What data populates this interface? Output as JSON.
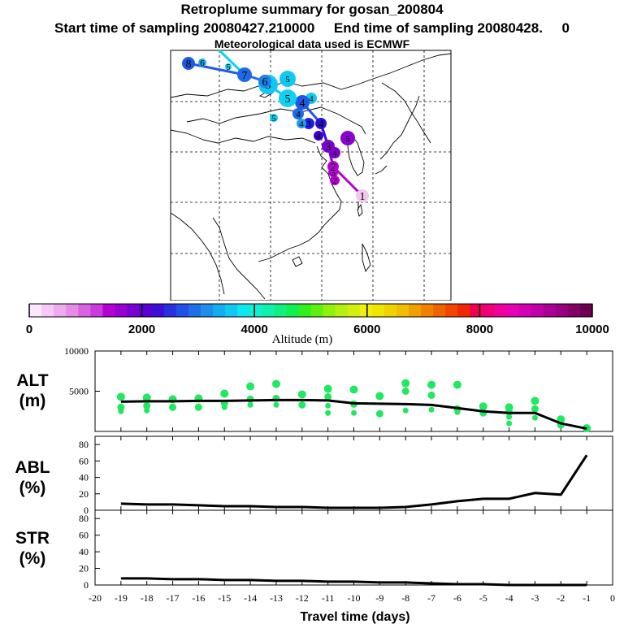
{
  "header": {
    "title": "Retroplume summary for gosan_200804",
    "sampling": "Start time of sampling 20080427.210000     End time of sampling 20080428.     0",
    "met": "Meteorological data used is ECMWF"
  },
  "map": {
    "trajectory": [
      {
        "label": "1",
        "color": "#f0c8f0"
      },
      {
        "label": "2",
        "color": "#b400d2"
      },
      {
        "label": "3",
        "color": "#8000d0"
      },
      {
        "label": "4",
        "color": "#2a10d8"
      },
      {
        "label": "4",
        "color": "#1e5ae6"
      },
      {
        "label": "5",
        "color": "#10d2f0"
      },
      {
        "label": "5",
        "color": "#10c8f0"
      },
      {
        "label": "6",
        "color": "#1e82ea"
      },
      {
        "label": "7",
        "color": "#1e6ae6"
      },
      {
        "label": "8",
        "color": "#1e5ae6"
      }
    ],
    "markers": [
      {
        "label": "2",
        "color": "#b400d2"
      },
      {
        "label": "3",
        "color": "#b400d2"
      },
      {
        "label": "4",
        "color": "#8000d0"
      },
      {
        "label": "5",
        "color": "#8a00d0"
      },
      {
        "label": "4",
        "color": "#3a00d4"
      },
      {
        "label": "3",
        "color": "#2020e0"
      },
      {
        "label": "4",
        "color": "#1e9aee"
      },
      {
        "label": "4",
        "color": "#1e6ae6"
      },
      {
        "label": "5",
        "color": "#10c8f0"
      },
      {
        "label": "4",
        "color": "#10c8f0"
      },
      {
        "label": "3",
        "color": "#1e6ae6"
      },
      {
        "label": "5",
        "color": "#10c8f0"
      },
      {
        "label": "6",
        "color": "#1eaaf0"
      },
      {
        "label": "5",
        "color": "#10c8f0"
      }
    ]
  },
  "colorbar": {
    "label": "Altitude (m)",
    "ticks": [
      "0",
      "2000",
      "4000",
      "6000",
      "8000",
      "10000"
    ],
    "colors": [
      "#fbe6fb",
      "#f5c8f5",
      "#eeaaee",
      "#e68ce6",
      "#d864e0",
      "#c83cdc",
      "#b400d2",
      "#9600d2",
      "#7800d2",
      "#5a00d2",
      "#3c10d8",
      "#2830e0",
      "#2050e6",
      "#1e6ee8",
      "#1e8eea",
      "#14aef0",
      "#10c8f0",
      "#10e6f0",
      "#10f0d2",
      "#10f0aa",
      "#10f080",
      "#10f050",
      "#30f020",
      "#60f010",
      "#90f010",
      "#b4f010",
      "#d2f010",
      "#f0f010",
      "#f0e600",
      "#f0d200",
      "#f0be00",
      "#f0a000",
      "#f08200",
      "#f06400",
      "#f04600",
      "#f02800",
      "#f00050",
      "#f00078",
      "#f0009a",
      "#e600b4",
      "#d200b4",
      "#be00aa",
      "#aa0096",
      "#960080",
      "#820064",
      "#6e0050"
    ]
  },
  "labels": {
    "alt": "ALT\n(m)",
    "abl": "ABL\n(%)",
    "str": "STR\n(%)"
  },
  "chart_data": [
    {
      "type": "scatter",
      "panel": "ALT",
      "ylabel": "ALT (m)",
      "xlabel": "Travel time (days)",
      "xlim": [
        -20,
        0
      ],
      "ylim": [
        0,
        10000
      ],
      "yticks": [
        5000,
        10000
      ],
      "line": {
        "x": [
          -19,
          -18,
          -17,
          -16,
          -15,
          -14,
          -13,
          -12,
          -11,
          -10,
          -9,
          -8,
          -7,
          -6,
          -5,
          -4,
          -3,
          -2,
          -1
        ],
        "y": [
          3700,
          3750,
          3750,
          3800,
          3800,
          3850,
          3900,
          3900,
          3850,
          3500,
          3450,
          3400,
          3300,
          2900,
          2500,
          2300,
          2300,
          1000,
          350
        ]
      },
      "points": [
        {
          "x": -19,
          "y": [
            4300,
            3000,
            2500
          ]
        },
        {
          "x": -18,
          "y": [
            4200,
            3200,
            2600
          ]
        },
        {
          "x": -17,
          "y": [
            4000,
            3000
          ]
        },
        {
          "x": -16,
          "y": [
            4100,
            3000
          ]
        },
        {
          "x": -15,
          "y": [
            4700,
            3500,
            3000
          ]
        },
        {
          "x": -14,
          "y": [
            5600,
            4000,
            3300
          ]
        },
        {
          "x": -13,
          "y": [
            5900,
            4100,
            3300
          ]
        },
        {
          "x": -12,
          "y": [
            4600,
            3300
          ]
        },
        {
          "x": -11,
          "y": [
            5300,
            4300,
            3200,
            2300
          ]
        },
        {
          "x": -10,
          "y": [
            5200,
            3400,
            2300
          ]
        },
        {
          "x": -9,
          "y": [
            4400,
            2200
          ]
        },
        {
          "x": -8,
          "y": [
            6000,
            5000,
            2600
          ]
        },
        {
          "x": -7,
          "y": [
            5800,
            4500,
            2700
          ]
        },
        {
          "x": -6,
          "y": [
            5800,
            2800,
            2400
          ]
        },
        {
          "x": -5,
          "y": [
            3100,
            2300
          ]
        },
        {
          "x": -4,
          "y": [
            3000,
            2400,
            1800,
            1000
          ]
        },
        {
          "x": -3,
          "y": [
            3800,
            2800,
            1700
          ]
        },
        {
          "x": -2,
          "y": [
            1500,
            800
          ]
        },
        {
          "x": -1,
          "y": [
            400
          ]
        }
      ]
    },
    {
      "type": "line",
      "panel": "ABL",
      "ylabel": "ABL (%)",
      "xlim": [
        -20,
        0
      ],
      "ylim": [
        0,
        90
      ],
      "yticks": [
        0,
        20,
        40,
        60,
        80
      ],
      "x": [
        -19,
        -18,
        -17,
        -16,
        -15,
        -14,
        -13,
        -12,
        -11,
        -10,
        -9,
        -8,
        -7,
        -6,
        -5,
        -4,
        -3,
        -2,
        -1
      ],
      "y": [
        8,
        7,
        7,
        6,
        5,
        5,
        4,
        4,
        3,
        3,
        3,
        4,
        7,
        11,
        14,
        14,
        21,
        19,
        67
      ]
    },
    {
      "type": "line",
      "panel": "STR",
      "ylabel": "STR (%)",
      "xlabel": "Travel time (days)",
      "xlim": [
        -20,
        0
      ],
      "ylim": [
        0,
        90
      ],
      "yticks": [
        0,
        20,
        40,
        60,
        80
      ],
      "xticks": [
        -20,
        -19,
        -18,
        -17,
        -16,
        -15,
        -14,
        -13,
        -12,
        -11,
        -10,
        -9,
        -8,
        -7,
        -6,
        -5,
        -4,
        -3,
        -2,
        -1,
        0
      ],
      "x": [
        -19,
        -18,
        -17,
        -16,
        -15,
        -14,
        -13,
        -12,
        -11,
        -10,
        -9,
        -8,
        -7,
        -6,
        -5,
        -4,
        -3,
        -2,
        -1
      ],
      "y": [
        8,
        8,
        7,
        7,
        6,
        6,
        5,
        5,
        4,
        4,
        3,
        3,
        2,
        1,
        1,
        0,
        0,
        0,
        0
      ]
    }
  ]
}
